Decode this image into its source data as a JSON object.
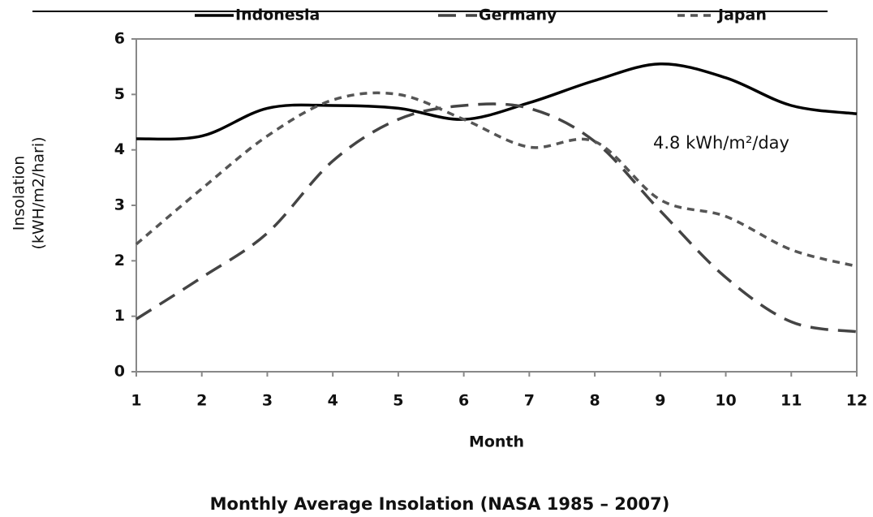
{
  "chart_data": {
    "type": "line",
    "title": "Monthly Average Insolation (NASA 1985 – 2007)",
    "xlabel": "Month",
    "ylabel": [
      "Insolation",
      "(kWH/m2/hari)"
    ],
    "annotation": "4.8 kWh/m²/day",
    "x": [
      1,
      2,
      3,
      4,
      5,
      6,
      7,
      8,
      9,
      10,
      11,
      12
    ],
    "series": [
      {
        "name": "Indonesia",
        "color": "#000000",
        "dash": "solid",
        "values": [
          4.2,
          4.25,
          4.75,
          4.8,
          4.75,
          4.55,
          4.85,
          5.25,
          5.55,
          5.3,
          4.8,
          4.65
        ]
      },
      {
        "name": "Germany",
        "color": "#444444",
        "dash": "long",
        "values": [
          0.95,
          1.7,
          2.5,
          3.8,
          4.55,
          4.8,
          4.75,
          4.15,
          2.9,
          1.7,
          0.9,
          0.72
        ]
      },
      {
        "name": "Japan",
        "color": "#555555",
        "dash": "short",
        "values": [
          2.3,
          3.3,
          4.25,
          4.9,
          5.0,
          4.55,
          4.05,
          4.15,
          3.1,
          2.8,
          2.2,
          1.9
        ]
      }
    ],
    "xlim": [
      1,
      12
    ],
    "xticks": [
      1,
      2,
      3,
      4,
      5,
      6,
      7,
      8,
      9,
      10,
      11,
      12
    ],
    "ylim": [
      0,
      6
    ],
    "yticks": [
      0,
      1,
      2,
      3,
      4,
      5,
      6
    ],
    "legend": "top"
  }
}
